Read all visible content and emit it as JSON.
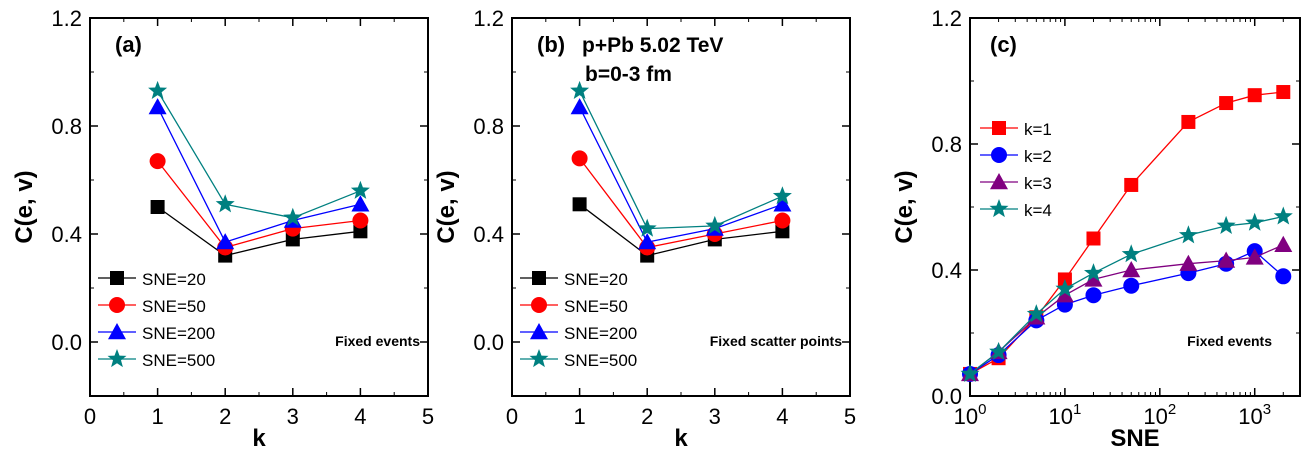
{
  "chart_data": [
    {
      "type": "line",
      "panel_label": "(a)",
      "annotation": "Fixed events",
      "title_lines": [],
      "xlabel": "k",
      "ylabel": "C(e, v)",
      "xlim": [
        0,
        5
      ],
      "ylim": [
        -0.2,
        1.2
      ],
      "x_ticks": [
        "0",
        "1",
        "2",
        "3",
        "4",
        "5"
      ],
      "y_ticks": [
        "0.0",
        "0.4",
        "0.8",
        "1.2"
      ],
      "legend_position": "bottom-left",
      "x": [
        1,
        2,
        3,
        4
      ],
      "series": [
        {
          "name": "SNE=20",
          "values": [
            0.5,
            0.32,
            0.38,
            0.41
          ],
          "color": "#000000",
          "marker": "square"
        },
        {
          "name": "SNE=50",
          "values": [
            0.67,
            0.35,
            0.42,
            0.45
          ],
          "color": "#ff0000",
          "marker": "circle"
        },
        {
          "name": "SNE=200",
          "values": [
            0.87,
            0.37,
            0.45,
            0.51
          ],
          "color": "#0000ff",
          "marker": "triangle"
        },
        {
          "name": "SNE=500",
          "values": [
            0.93,
            0.51,
            0.46,
            0.56
          ],
          "color": "#008080",
          "marker": "star"
        }
      ]
    },
    {
      "type": "line",
      "panel_label": "(b)",
      "annotation": "Fixed scatter points",
      "title_lines": [
        "p+Pb 5.02 TeV",
        "b=0-3 fm"
      ],
      "xlabel": "k",
      "ylabel": "C(e, v)",
      "xlim": [
        0,
        5
      ],
      "ylim": [
        -0.2,
        1.2
      ],
      "x_ticks": [
        "0",
        "1",
        "2",
        "3",
        "4",
        "5"
      ],
      "y_ticks": [
        "0.0",
        "0.4",
        "0.8",
        "1.2"
      ],
      "legend_position": "bottom-left",
      "x": [
        1,
        2,
        3,
        4
      ],
      "series": [
        {
          "name": "SNE=20",
          "values": [
            0.51,
            0.32,
            0.38,
            0.41
          ],
          "color": "#000000",
          "marker": "square"
        },
        {
          "name": "SNE=50",
          "values": [
            0.68,
            0.35,
            0.4,
            0.45
          ],
          "color": "#ff0000",
          "marker": "circle"
        },
        {
          "name": "SNE=200",
          "values": [
            0.87,
            0.37,
            0.42,
            0.51
          ],
          "color": "#0000ff",
          "marker": "triangle"
        },
        {
          "name": "SNE=500",
          "values": [
            0.93,
            0.42,
            0.43,
            0.54
          ],
          "color": "#008080",
          "marker": "star"
        }
      ]
    },
    {
      "type": "line",
      "panel_label": "(c)",
      "annotation": "Fixed events",
      "title_lines": [],
      "xlabel": "SNE",
      "ylabel": "C(e, v)",
      "x_scale": "log",
      "xlim": [
        1,
        3000
      ],
      "ylim": [
        0.0,
        1.2
      ],
      "x_ticks": [
        {
          "base": "10",
          "exp": "0"
        },
        {
          "base": "10",
          "exp": "1"
        },
        {
          "base": "10",
          "exp": "2"
        },
        {
          "base": "10",
          "exp": "3"
        }
      ],
      "y_ticks": [
        "0.0",
        "0.4",
        "0.8",
        "1.2"
      ],
      "legend_position": "top-left",
      "x": [
        1,
        2,
        5,
        10,
        20,
        50,
        200,
        500,
        1000,
        2000
      ],
      "series": [
        {
          "name": "k=1",
          "values": [
            0.07,
            0.12,
            0.25,
            0.37,
            0.5,
            0.67,
            0.87,
            0.93,
            0.955,
            0.965
          ],
          "color": "#ff0000",
          "marker": "square"
        },
        {
          "name": "k=2",
          "values": [
            0.07,
            0.13,
            0.24,
            0.29,
            0.32,
            0.35,
            0.39,
            0.42,
            0.46,
            0.38
          ],
          "color": "#0000ff",
          "marker": "circle"
        },
        {
          "name": "k=3",
          "values": [
            0.07,
            0.14,
            0.25,
            0.32,
            0.37,
            0.4,
            0.42,
            0.43,
            0.44,
            0.48
          ],
          "color": "#800080",
          "marker": "triangle"
        },
        {
          "name": "k=4",
          "values": [
            0.07,
            0.14,
            0.26,
            0.34,
            0.39,
            0.45,
            0.51,
            0.54,
            0.55,
            0.57
          ],
          "color": "#008080",
          "marker": "star"
        }
      ]
    }
  ]
}
